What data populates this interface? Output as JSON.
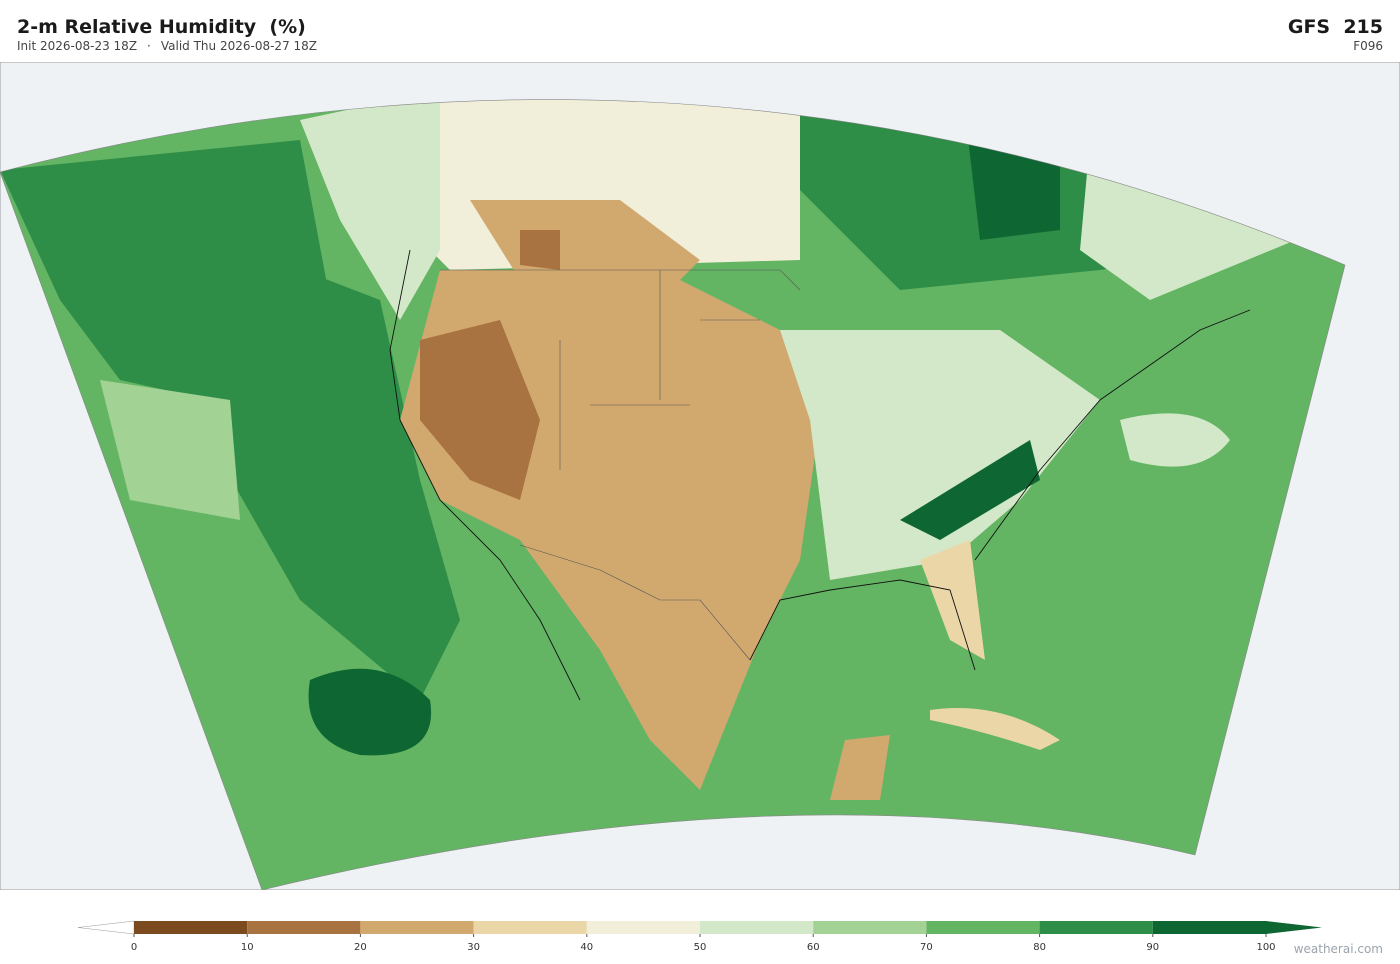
{
  "header": {
    "title": "2-m Relative Humidity  (%)",
    "init": "Init 2026-08-23 18Z",
    "separator": "·",
    "valid": "Valid Thu 2026-08-27 18Z",
    "model": "GFS  215",
    "forecast_hour": "F096"
  },
  "colorbar": {
    "type": "colorbar",
    "lim": [
      0,
      100
    ],
    "ticks": [
      0,
      10,
      20,
      30,
      40,
      50,
      60,
      70,
      80,
      90,
      100
    ],
    "colors": [
      "#7b4a1e",
      "#a87340",
      "#d1a96f",
      "#ebd6a8",
      "#f1efda",
      "#d3e8c8",
      "#a2d395",
      "#63b463",
      "#2e8d47",
      "#0e6632"
    ],
    "extend_min_color": "#ffffff",
    "extend_max_color": "#0e6632"
  },
  "watermark": "weatherai.com"
}
